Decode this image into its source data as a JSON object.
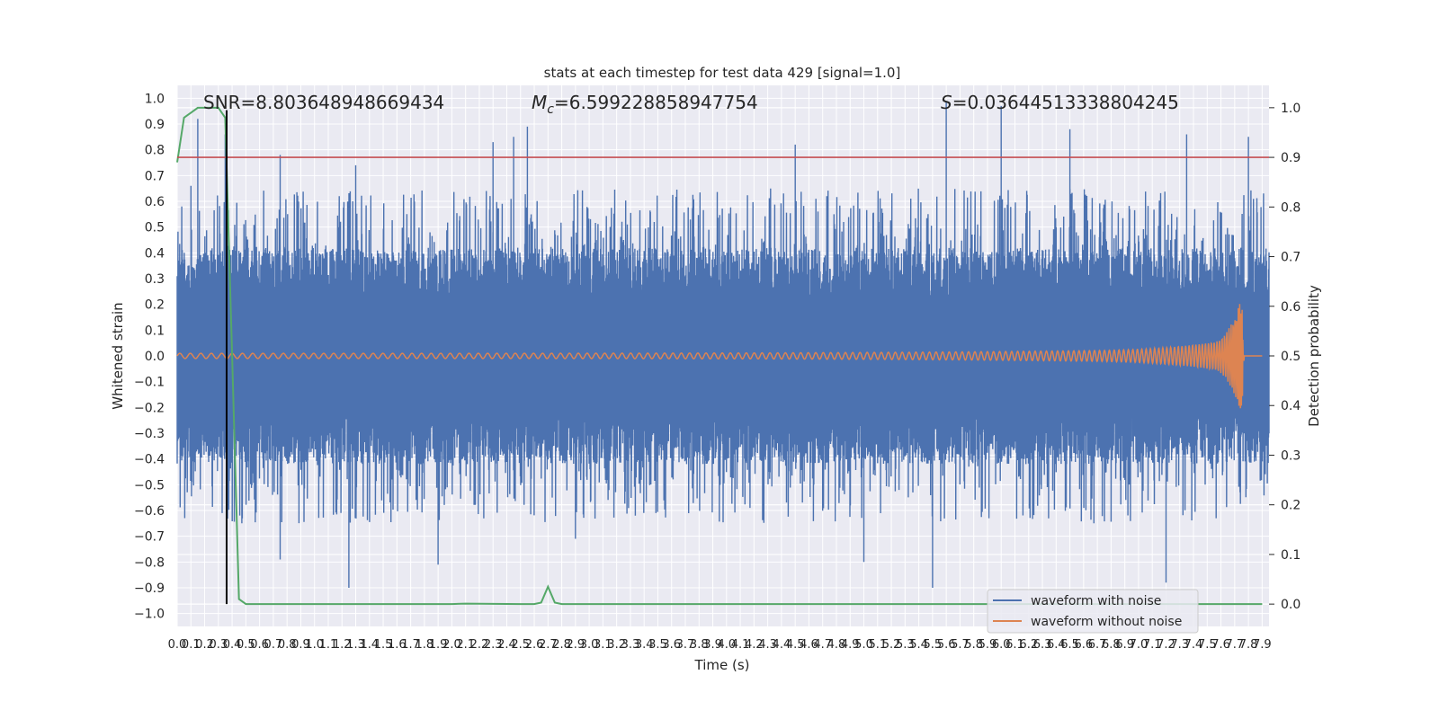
{
  "chart_data": {
    "type": "line",
    "title": "stats at each timestep for test data 429 [signal=1.0]",
    "xlabel": "Time (s)",
    "ylabel_left": "Whitened strain",
    "ylabel_right": "Detection probability",
    "xlim": [
      0.0,
      7.95
    ],
    "ylim_left": [
      -1.05,
      1.05
    ],
    "ylim_right": [
      -0.045,
      1.045
    ],
    "x_tick_labels": [
      "0.0",
      "0.1",
      "0.2",
      "0.3",
      "0.4",
      "0.5",
      "0.6",
      "0.7",
      "0.8",
      "0.9",
      "1.0",
      "1.1",
      "1.2",
      "1.3",
      "1.4",
      "1.5",
      "1.6",
      "1.7",
      "1.8",
      "1.9",
      "2.0",
      "2.1",
      "2.2",
      "2.3",
      "2.4",
      "2.5",
      "2.6",
      "2.7",
      "2.8",
      "2.9",
      "3.0",
      "3.1",
      "3.2",
      "3.3",
      "3.4",
      "3.5",
      "3.6",
      "3.7",
      "3.8",
      "3.9",
      "4.0",
      "4.1",
      "4.2",
      "4.3",
      "4.4",
      "4.5",
      "4.6",
      "4.7",
      "4.8",
      "4.9",
      "5.0",
      "5.1",
      "5.2",
      "5.3",
      "5.4",
      "5.5",
      "5.6",
      "5.7",
      "5.8",
      "5.9",
      "6.0",
      "6.1",
      "6.2",
      "6.3",
      "6.4",
      "6.5",
      "6.6",
      "6.7",
      "6.8",
      "6.9",
      "7.0",
      "7.1",
      "7.2",
      "7.3",
      "7.4",
      "7.5",
      "7.6",
      "7.7",
      "7.8",
      "7.9"
    ],
    "y_left_tick_labels": [
      "1.0",
      "0.9",
      "0.8",
      "0.7",
      "0.6",
      "0.5",
      "0.4",
      "0.3",
      "0.2",
      "0.1",
      "0.0",
      "−0.1",
      "−0.2",
      "−0.3",
      "−0.4",
      "−0.5",
      "−0.6",
      "−0.7",
      "−0.8",
      "−0.9",
      "−1.0"
    ],
    "y_right_tick_labels": [
      "1.0",
      "0.9",
      "0.8",
      "0.7",
      "0.6",
      "0.5",
      "0.4",
      "0.3",
      "0.2",
      "0.1",
      "0.0"
    ],
    "annotations": {
      "snr": "SNR=8.803648948669434",
      "mc_symbol": "M",
      "mc_sub": "c",
      "mc_value": "=6.599228858947754",
      "s_symbol": "S",
      "s_value": "=0.036445133388042​45"
    },
    "threshold_line": {
      "axis": "right",
      "y": 0.9,
      "color": "#c44e52"
    },
    "event_line": {
      "x": 0.36,
      "color": "#000000"
    },
    "series": [
      {
        "name": "waveform with noise",
        "axis": "left",
        "color": "#4c72b0",
        "x_range": [
          0.0,
          7.95
        ],
        "envelope_min": -0.3,
        "envelope_max": 0.3,
        "notable_peaks": [
          {
            "x": 0.1,
            "y": 0.66
          },
          {
            "x": 0.15,
            "y": 0.92
          },
          {
            "x": 0.35,
            "y": 0.86
          },
          {
            "x": 0.75,
            "y": 0.78
          },
          {
            "x": 1.3,
            "y": 0.74
          },
          {
            "x": 2.3,
            "y": 0.83
          },
          {
            "x": 2.45,
            "y": 0.85
          },
          {
            "x": 2.55,
            "y": 0.89
          },
          {
            "x": 4.5,
            "y": 0.82
          },
          {
            "x": 5.6,
            "y": 0.99
          },
          {
            "x": 6.0,
            "y": 0.97
          },
          {
            "x": 6.5,
            "y": 0.88
          },
          {
            "x": 7.35,
            "y": 0.86
          },
          {
            "x": 7.8,
            "y": 0.85
          },
          {
            "x": 0.75,
            "y": -0.79
          },
          {
            "x": 1.25,
            "y": -0.9
          },
          {
            "x": 1.9,
            "y": -0.81
          },
          {
            "x": 2.9,
            "y": -0.71
          },
          {
            "x": 5.0,
            "y": -0.8
          },
          {
            "x": 5.5,
            "y": -0.9
          },
          {
            "x": 7.2,
            "y": -0.88
          }
        ]
      },
      {
        "name": "waveform without noise",
        "axis": "left",
        "color": "#dd8452",
        "description_values": {
          "start_amplitude": 0.01,
          "amplitude_at_7.7s": 0.12,
          "peak_amplitude": 0.26,
          "peak_x": 7.75,
          "end_x": 7.77
        }
      },
      {
        "name": "detection probability",
        "axis": "right",
        "color": "#55a868",
        "x": [
          0.0,
          0.05,
          0.1,
          0.15,
          0.2,
          0.25,
          0.3,
          0.35,
          0.4,
          0.45,
          0.5,
          0.6,
          1.0,
          2.0,
          2.1,
          2.5,
          2.6,
          2.65,
          2.7,
          2.75,
          2.8,
          2.85,
          3.0,
          4.0,
          5.0,
          6.0,
          7.0,
          7.9
        ],
        "y": [
          0.89,
          0.98,
          0.99,
          1.0,
          1.0,
          1.0,
          1.0,
          0.98,
          0.5,
          0.01,
          0.0,
          0.0,
          0.0,
          0.0,
          0.001,
          0.0,
          0.0,
          0.003,
          0.035,
          0.003,
          0.0,
          0.0,
          0.0,
          0.0,
          0.0,
          0.0,
          0.0,
          0.0
        ]
      }
    ],
    "legend": {
      "placement": "lower right",
      "entries": [
        {
          "label": "waveform with noise",
          "color": "#4c72b0"
        },
        {
          "label": "waveform without noise",
          "color": "#dd8452"
        }
      ]
    },
    "style": {
      "plot_background": "#eaeaf2",
      "grid": true,
      "grid_color": "#ffffff"
    }
  }
}
